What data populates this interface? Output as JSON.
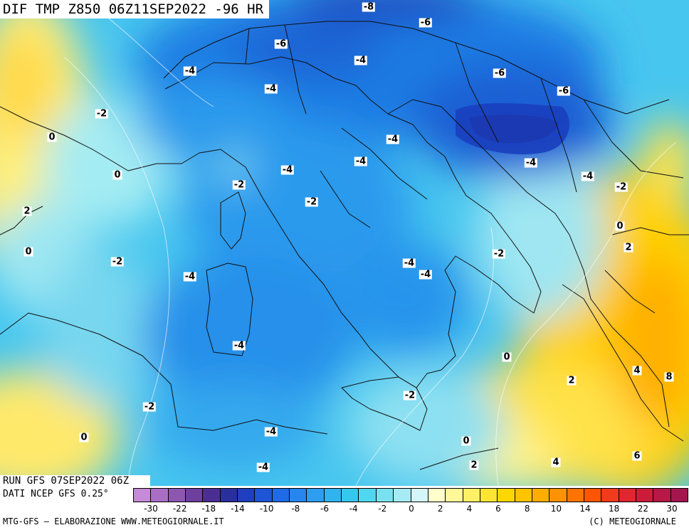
{
  "title": "DIF TMP Z850 06Z11SEP2022 -96 HR",
  "run_label": "RUN GFS 07SEP2022 06Z",
  "data_source": "DATI NCEP GFS 0.25°",
  "footer_left": "MTG-GFS – ELABORAZIONE WWW.METEOGIORNALE.IT",
  "footer_right": "(C) METEOGIORNALE",
  "contour_labels": [
    "-8",
    "-6",
    "-6",
    "-6",
    "-6",
    "-4",
    "-4",
    "-4",
    "-2",
    "0",
    "0",
    "2",
    "0",
    "-2",
    "-4",
    "-4",
    "-4",
    "-4",
    "-2",
    "-2",
    "-4",
    "-4",
    "-4",
    "-4",
    "-2",
    "-2",
    "0",
    "2",
    "0",
    "2",
    "4",
    "8",
    "6",
    "4",
    "2",
    "0",
    "-2",
    "-4",
    "-4",
    "-2",
    "0"
  ],
  "colorbar": {
    "colors": [
      "#c58bd6",
      "#aa6fc5",
      "#8d57b0",
      "#6e3f9c",
      "#4a2e91",
      "#2a2f9e",
      "#1f3fbf",
      "#1d55d6",
      "#1f6be6",
      "#2685ee",
      "#2d9df0",
      "#2fb4f0",
      "#34c8ee",
      "#4fd7ef",
      "#79e1f0",
      "#a6ebf4",
      "#d4f6f8",
      "#ffffcc",
      "#fff799",
      "#fff066",
      "#ffe533",
      "#ffd700",
      "#ffc300",
      "#ffad00",
      "#ff9200",
      "#ff7400",
      "#ff5500",
      "#f23a1c",
      "#e0262e",
      "#cc1c3a",
      "#b81845",
      "#a5164f"
    ],
    "ticks": [
      "-30",
      "-22",
      "-18",
      "-14",
      "-10",
      "-8",
      "-6",
      "-4",
      "-2",
      "0",
      "2",
      "4",
      "6",
      "8",
      "10",
      "14",
      "18",
      "22",
      "30"
    ]
  }
}
